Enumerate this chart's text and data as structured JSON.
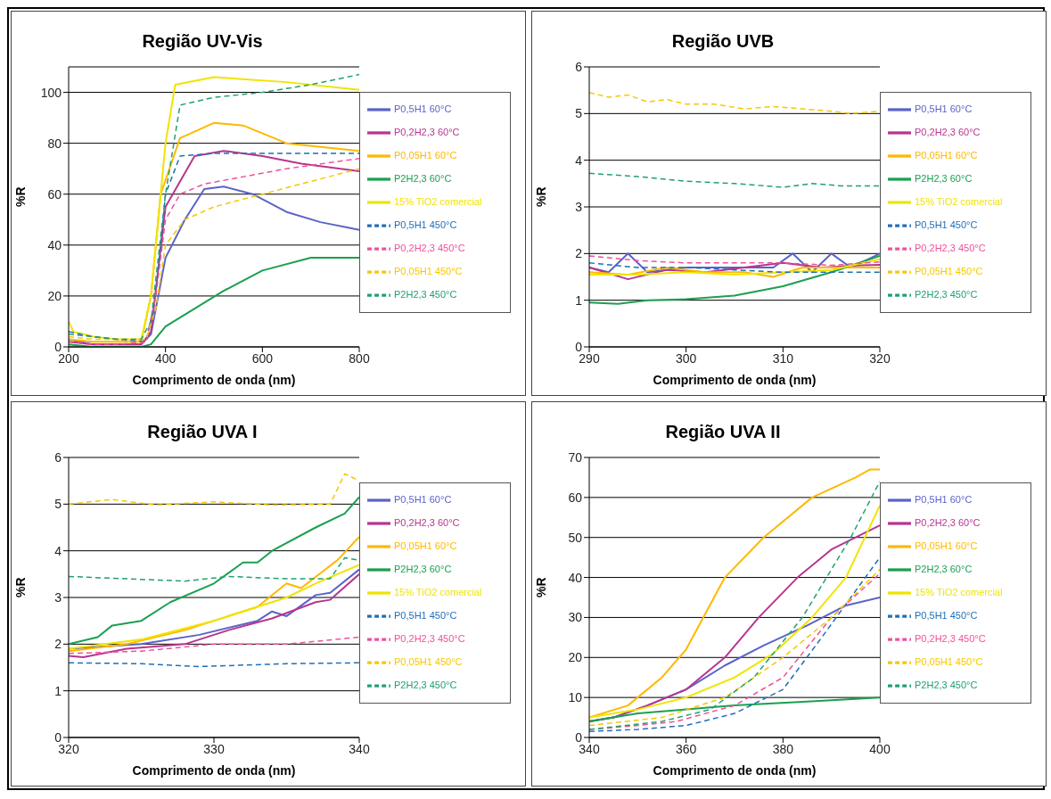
{
  "chart_data": [
    {
      "type": "line",
      "title": "Região UV-Vis",
      "xlabel": "Comprimento de onda (nm)",
      "ylabel": "%R",
      "xlim": [
        200,
        800
      ],
      "xticks": [
        200,
        400,
        600,
        800
      ],
      "ylim": [
        0,
        110
      ],
      "yticks": [
        0,
        20,
        40,
        60,
        80,
        100
      ],
      "grid": "y",
      "legend": "right",
      "series": [
        {
          "name": "P0,5H1 60°C",
          "color": "#5b63c8",
          "line_style": "solid",
          "x": [
            200,
            250,
            300,
            350,
            370,
            400,
            440,
            480,
            520,
            580,
            650,
            720,
            800
          ],
          "values": [
            3,
            1,
            1,
            1,
            5,
            35,
            50,
            62,
            63,
            60,
            53,
            49,
            46
          ]
        },
        {
          "name": "P0,2H2,3 60°C",
          "color": "#b8358f",
          "line_style": "solid",
          "x": [
            200,
            250,
            300,
            350,
            370,
            400,
            460,
            520,
            600,
            680,
            800
          ],
          "values": [
            2,
            1,
            1,
            1,
            6,
            55,
            75,
            77,
            75,
            72,
            69
          ]
        },
        {
          "name": "P0,05H1 60°C",
          "color": "#ffb800",
          "line_style": "solid",
          "x": [
            200,
            250,
            300,
            350,
            370,
            390,
            430,
            500,
            560,
            650,
            800
          ],
          "values": [
            3,
            2,
            2,
            2,
            20,
            60,
            82,
            88,
            87,
            80,
            77
          ]
        },
        {
          "name": "P2H2,3 60°C",
          "color": "#1aa050",
          "line_style": "solid",
          "x": [
            200,
            250,
            300,
            350,
            370,
            400,
            460,
            520,
            600,
            700,
            800
          ],
          "values": [
            1,
            0,
            0,
            0,
            1,
            8,
            15,
            22,
            30,
            35,
            35
          ]
        },
        {
          "name": "15% TiO2 comercial",
          "color": "#f0e400",
          "line_style": "solid",
          "x": [
            200,
            210,
            250,
            300,
            350,
            370,
            400,
            420,
            500,
            650,
            800
          ],
          "values": [
            10,
            6,
            4,
            3,
            3,
            20,
            80,
            103,
            106,
            104,
            101
          ]
        },
        {
          "name": "P0,5H1 450°C",
          "color": "#1f6fb8",
          "line_style": "dashed",
          "x": [
            200,
            250,
            300,
            360,
            380,
            400,
            430,
            500,
            800
          ],
          "values": [
            6,
            4,
            3,
            2,
            20,
            60,
            75,
            76,
            76
          ]
        },
        {
          "name": "P0,2H2,3 450°C",
          "color": "#f0509a",
          "line_style": "dashed",
          "x": [
            200,
            250,
            300,
            360,
            380,
            400,
            430,
            480,
            650,
            800
          ],
          "values": [
            2,
            1,
            1,
            2,
            20,
            50,
            60,
            64,
            70,
            74
          ]
        },
        {
          "name": "P0,05H1 450°C",
          "color": "#f5c800",
          "line_style": "dashed",
          "x": [
            200,
            250,
            300,
            360,
            380,
            400,
            440,
            500,
            600,
            700,
            800
          ],
          "values": [
            4,
            3,
            3,
            3,
            15,
            40,
            50,
            55,
            60,
            65,
            70
          ]
        },
        {
          "name": "P2H2,3 450°C",
          "color": "#20a070",
          "line_style": "dashed",
          "x": [
            200,
            250,
            300,
            350,
            370,
            400,
            430,
            500,
            600,
            700,
            800
          ],
          "values": [
            5,
            4,
            3,
            3,
            10,
            60,
            95,
            98,
            100,
            103,
            107
          ]
        }
      ]
    },
    {
      "type": "line",
      "title": "Região UVB",
      "xlabel": "Comprimento de onda (nm)",
      "ylabel": "%R",
      "xlim": [
        290,
        320
      ],
      "xticks": [
        290,
        300,
        310,
        320
      ],
      "ylim": [
        0,
        6
      ],
      "yticks": [
        0,
        1,
        2,
        3,
        4,
        5,
        6
      ],
      "grid": "y",
      "legend": "right",
      "series": [
        {
          "name": "P0,5H1 60°C",
          "color": "#5b63c8",
          "line_style": "solid",
          "x": [
            290,
            292,
            294,
            296,
            300,
            305,
            309,
            311,
            313,
            315,
            317,
            320
          ],
          "values": [
            1.7,
            1.6,
            2.0,
            1.6,
            1.7,
            1.7,
            1.7,
            2.0,
            1.6,
            2.0,
            1.7,
            2.0
          ]
        },
        {
          "name": "P0,2H2,3 60°C",
          "color": "#b8358f",
          "line_style": "solid",
          "x": [
            290,
            294,
            298,
            302,
            306,
            310,
            314,
            318,
            320
          ],
          "values": [
            1.7,
            1.45,
            1.65,
            1.6,
            1.7,
            1.8,
            1.7,
            1.75,
            1.76
          ]
        },
        {
          "name": "P0,05H1 60°C",
          "color": "#ffb800",
          "line_style": "solid",
          "x": [
            290,
            294,
            298,
            302,
            306,
            309,
            312,
            316,
            320
          ],
          "values": [
            1.6,
            1.55,
            1.7,
            1.6,
            1.6,
            1.5,
            1.7,
            1.7,
            1.7
          ]
        },
        {
          "name": "P2H2,3 60°C",
          "color": "#1aa050",
          "line_style": "solid",
          "x": [
            290,
            293,
            296,
            300,
            305,
            310,
            315,
            320
          ],
          "values": [
            0.95,
            0.92,
            1.0,
            1.02,
            1.1,
            1.3,
            1.6,
            1.95
          ]
        },
        {
          "name": "15% TiO2 comercial",
          "color": "#f0e400",
          "line_style": "solid",
          "x": [
            290,
            295,
            300,
            305,
            310,
            315,
            320
          ],
          "values": [
            1.55,
            1.55,
            1.6,
            1.55,
            1.6,
            1.65,
            1.88
          ]
        },
        {
          "name": "P0,5H1 450°C",
          "color": "#1f6fb8",
          "line_style": "dashed",
          "x": [
            290,
            295,
            300,
            305,
            310,
            315,
            320
          ],
          "values": [
            1.8,
            1.7,
            1.7,
            1.65,
            1.6,
            1.6,
            1.6
          ]
        },
        {
          "name": "P0,2H2,3 450°C",
          "color": "#f0509a",
          "line_style": "dashed",
          "x": [
            290,
            295,
            300,
            305,
            310,
            315,
            320
          ],
          "values": [
            1.95,
            1.85,
            1.8,
            1.8,
            1.8,
            1.75,
            1.82
          ]
        },
        {
          "name": "P0,05H1 450°C",
          "color": "#f5c800",
          "line_style": "dashed",
          "x": [
            290,
            292,
            294,
            296,
            298,
            300,
            303,
            306,
            309,
            312,
            315,
            317,
            320
          ],
          "values": [
            5.45,
            5.35,
            5.4,
            5.25,
            5.3,
            5.2,
            5.2,
            5.1,
            5.15,
            5.1,
            5.05,
            5.0,
            5.05
          ]
        },
        {
          "name": "P2H2,3 450°C",
          "color": "#20a070",
          "line_style": "dashed",
          "x": [
            290,
            295,
            300,
            305,
            310,
            313,
            316,
            320
          ],
          "values": [
            3.72,
            3.65,
            3.55,
            3.5,
            3.42,
            3.5,
            3.45,
            3.45
          ]
        }
      ]
    },
    {
      "type": "line",
      "title": "Região UVA I",
      "xlabel": "Comprimento de onda (nm)",
      "ylabel": "%R",
      "xlim": [
        320,
        340
      ],
      "xticks": [
        320,
        330,
        340
      ],
      "ylim": [
        0,
        6
      ],
      "yticks": [
        0,
        1,
        2,
        3,
        4,
        5,
        6
      ],
      "grid": "y",
      "legend": "right",
      "series": [
        {
          "name": "P0,5H1 60°C",
          "color": "#5b63c8",
          "line_style": "solid",
          "x": [
            320,
            325,
            329,
            333,
            334,
            335,
            337,
            338,
            340
          ],
          "values": [
            1.9,
            2.0,
            2.2,
            2.5,
            2.7,
            2.6,
            3.05,
            3.1,
            3.6
          ]
        },
        {
          "name": "P0,2H2,3 60°C",
          "color": "#b8358f",
          "line_style": "solid",
          "x": [
            320,
            321,
            324,
            328,
            331,
            334,
            337,
            338,
            340
          ],
          "values": [
            1.75,
            1.72,
            1.9,
            2.0,
            2.3,
            2.55,
            2.9,
            2.95,
            3.5
          ]
        },
        {
          "name": "P0,05H1 60°C",
          "color": "#ffb800",
          "line_style": "solid",
          "x": [
            320,
            324,
            328,
            333,
            335,
            336,
            338.5,
            340
          ],
          "values": [
            1.85,
            2.0,
            2.3,
            2.8,
            3.3,
            3.2,
            3.8,
            4.3
          ]
        },
        {
          "name": "P2H2,3 60°C",
          "color": "#1aa050",
          "line_style": "solid",
          "x": [
            320,
            322,
            323,
            325,
            327,
            330,
            332,
            333,
            334,
            337,
            339,
            340
          ],
          "values": [
            2.0,
            2.15,
            2.4,
            2.5,
            2.9,
            3.3,
            3.75,
            3.75,
            4.0,
            4.5,
            4.8,
            5.15
          ]
        },
        {
          "name": "15% TiO2 comercial",
          "color": "#f0e400",
          "line_style": "solid",
          "x": [
            320,
            325,
            330,
            335,
            337,
            340
          ],
          "values": [
            1.9,
            2.1,
            2.5,
            3.0,
            3.3,
            3.7
          ]
        },
        {
          "name": "P0,5H1 450°C",
          "color": "#1f6fb8",
          "line_style": "dashed",
          "x": [
            320,
            325,
            329,
            335,
            340
          ],
          "values": [
            1.6,
            1.58,
            1.52,
            1.58,
            1.6
          ]
        },
        {
          "name": "P0,2H2,3 450°C",
          "color": "#f0509a",
          "line_style": "dashed",
          "x": [
            320,
            325,
            330,
            335,
            340
          ],
          "values": [
            1.8,
            1.85,
            2.0,
            2.0,
            2.15
          ]
        },
        {
          "name": "P0,05H1 450°C",
          "color": "#f5c800",
          "line_style": "dashed",
          "x": [
            320,
            323,
            326,
            330,
            334,
            338,
            339,
            340
          ],
          "values": [
            5.0,
            5.1,
            4.98,
            5.05,
            4.98,
            5.0,
            5.65,
            5.5
          ]
        },
        {
          "name": "P2H2,3 450°C",
          "color": "#20a070",
          "line_style": "dashed",
          "x": [
            320,
            324,
            328,
            331,
            335,
            338,
            339,
            340
          ],
          "values": [
            3.45,
            3.4,
            3.35,
            3.45,
            3.4,
            3.4,
            3.85,
            3.8
          ]
        }
      ]
    },
    {
      "type": "line",
      "title": "Região UVA II",
      "xlabel": "Comprimento de onda (nm)",
      "ylabel": "%R",
      "xlim": [
        340,
        400
      ],
      "xticks": [
        340,
        360,
        380,
        400
      ],
      "ylim": [
        0,
        70
      ],
      "yticks": [
        0,
        10,
        20,
        30,
        40,
        50,
        60,
        70
      ],
      "grid": "y",
      "legend": "right",
      "series": [
        {
          "name": "P0,5H1 60°C",
          "color": "#5b63c8",
          "line_style": "solid",
          "x": [
            340,
            345,
            352,
            360,
            368,
            376,
            385,
            393,
            400
          ],
          "values": [
            4,
            5,
            8,
            12,
            18,
            23,
            28,
            33,
            35
          ]
        },
        {
          "name": "P0,2H2,3 60°C",
          "color": "#b8358f",
          "line_style": "solid",
          "x": [
            340,
            345,
            352,
            360,
            368,
            375,
            383,
            390,
            400
          ],
          "values": [
            4,
            5,
            8,
            12,
            20,
            30,
            40,
            47,
            53
          ]
        },
        {
          "name": "P0,05H1 60°C",
          "color": "#ffb800",
          "line_style": "solid",
          "x": [
            340,
            348,
            355,
            360,
            368,
            376,
            386,
            395,
            398,
            400
          ],
          "values": [
            5,
            8,
            15,
            22,
            40,
            50,
            60,
            65,
            67,
            67
          ]
        },
        {
          "name": "P2H2,3 60°C",
          "color": "#1aa050",
          "line_style": "solid",
          "x": [
            340,
            350,
            360,
            370,
            385,
            400
          ],
          "values": [
            4,
            6,
            7,
            8,
            9,
            10
          ]
        },
        {
          "name": "15% TiO2 comercial",
          "color": "#f0e400",
          "line_style": "solid",
          "x": [
            340,
            350,
            360,
            370,
            378,
            386,
            393,
            400
          ],
          "values": [
            5,
            7,
            10,
            15,
            21,
            30,
            40,
            58
          ]
        },
        {
          "name": "P0,5H1 450°C",
          "color": "#1f6fb8",
          "line_style": "dashed",
          "x": [
            340,
            350,
            360,
            370,
            380,
            388,
            394,
            400
          ],
          "values": [
            1.5,
            2,
            3,
            6,
            12,
            25,
            35,
            45
          ]
        },
        {
          "name": "P0,2H2,3 450°C",
          "color": "#f0509a",
          "line_style": "dashed",
          "x": [
            340,
            350,
            358,
            370,
            380,
            390,
            400
          ],
          "values": [
            2,
            3,
            4,
            8,
            15,
            30,
            41
          ]
        },
        {
          "name": "P0,05H1 450°C",
          "color": "#f5c800",
          "line_style": "dashed",
          "x": [
            340,
            355,
            368,
            380,
            390,
            400
          ],
          "values": [
            3,
            5,
            10,
            20,
            30,
            42
          ]
        },
        {
          "name": "P2H2,3 450°C",
          "color": "#20a070",
          "line_style": "dashed",
          "x": [
            340,
            355,
            365,
            374,
            384,
            394,
            400
          ],
          "values": [
            2,
            4,
            7,
            15,
            30,
            50,
            64
          ]
        }
      ]
    }
  ]
}
